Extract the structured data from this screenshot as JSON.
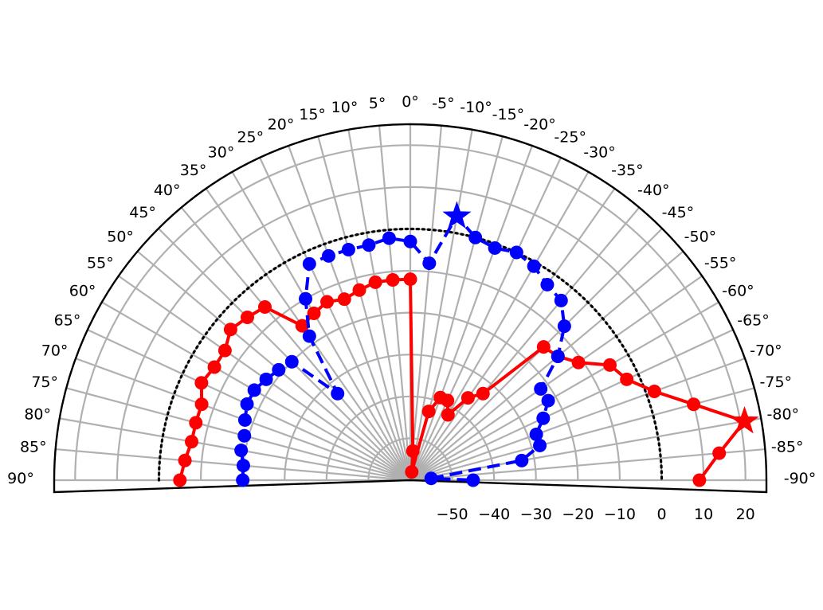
{
  "chart_data": {
    "type": "polar-line",
    "title": "",
    "angular_axis": {
      "unit": "degrees",
      "range": [
        -90,
        90
      ],
      "tick_labels": [
        "90°",
        "85°",
        "80°",
        "75°",
        "70°",
        "65°",
        "60°",
        "55°",
        "50°",
        "45°",
        "40°",
        "35°",
        "30°",
        "25°",
        "20°",
        "15°",
        "10°",
        "5°",
        "0°",
        "-5°",
        "-10°",
        "-15°",
        "-20°",
        "-25°",
        "-30°",
        "-35°",
        "-40°",
        "-45°",
        "-50°",
        "-55°",
        "-60°",
        "-65°",
        "-70°",
        "-75°",
        "-80°",
        "-85°",
        "-90°"
      ]
    },
    "radial_axis": {
      "range": [
        -60,
        25
      ],
      "tick_labels": [
        "−50",
        "−40",
        "−30",
        "−20",
        "−10",
        "0",
        "10",
        "20"
      ],
      "reference_circle": 0,
      "grid": true
    },
    "series": [
      {
        "color": "#ff0000",
        "line_style": "solid",
        "marker": "circle",
        "peak_marker": "star",
        "points": [
          [
            90,
            -5
          ],
          [
            85,
            -6
          ],
          [
            80,
            -7
          ],
          [
            75,
            -7
          ],
          [
            70,
            -7
          ],
          [
            65,
            -5
          ],
          [
            60,
            -6
          ],
          [
            55,
            -6
          ],
          [
            50,
            -4
          ],
          [
            45,
            -5
          ],
          [
            40,
            -6
          ],
          [
            35,
            -15
          ],
          [
            30,
            -14
          ],
          [
            25,
            -13
          ],
          [
            20,
            -14
          ],
          [
            15,
            -13
          ],
          [
            10,
            -12
          ],
          [
            5,
            -12
          ],
          [
            0,
            -12
          ],
          [
            -5,
            -53
          ],
          [
            -10,
            -58
          ],
          [
            -15,
            -43
          ],
          [
            -20,
            -39
          ],
          [
            -25,
            -39
          ],
          [
            -30,
            -42
          ],
          [
            -35,
            -36
          ],
          [
            -40,
            -33
          ],
          [
            -45,
            -15
          ],
          [
            -50,
            -14
          ],
          [
            -55,
            -11
          ],
          [
            -60,
            -5
          ],
          [
            -65,
            -3
          ],
          [
            -70,
            2
          ],
          [
            -75,
            10
          ],
          [
            -80,
            21
          ],
          [
            -85,
            14
          ],
          [
            -90,
            9
          ]
        ]
      },
      {
        "color": "#0000ff",
        "line_style": "dashed",
        "marker": "circle",
        "peak_marker": "star",
        "points": [
          [
            90,
            -20
          ],
          [
            85,
            -20
          ],
          [
            80,
            -19
          ],
          [
            75,
            -19
          ],
          [
            70,
            -18
          ],
          [
            65,
            -17
          ],
          [
            60,
            -17
          ],
          [
            55,
            -18
          ],
          [
            50,
            -19
          ],
          [
            45,
            -20
          ],
          [
            40,
            -33
          ],
          [
            35,
            -18
          ],
          [
            30,
            -10
          ],
          [
            25,
            -3
          ],
          [
            20,
            -3
          ],
          [
            15,
            -3
          ],
          [
            10,
            -3
          ],
          [
            5,
            -2
          ],
          [
            0,
            -3
          ],
          [
            -5,
            -8
          ],
          [
            -10,
            4
          ],
          [
            -15,
            0
          ],
          [
            -20,
            -1
          ],
          [
            -25,
            0
          ],
          [
            -30,
            -1
          ],
          [
            -35,
            -3
          ],
          [
            -40,
            -4
          ],
          [
            -45,
            -8
          ],
          [
            -50,
            -14
          ],
          [
            -55,
            -22
          ],
          [
            -60,
            -22
          ],
          [
            -65,
            -25
          ],
          [
            -70,
            -28
          ],
          [
            -75,
            -28
          ],
          [
            -80,
            -33
          ],
          [
            -85,
            -55
          ],
          [
            -90,
            -45
          ]
        ]
      }
    ]
  }
}
